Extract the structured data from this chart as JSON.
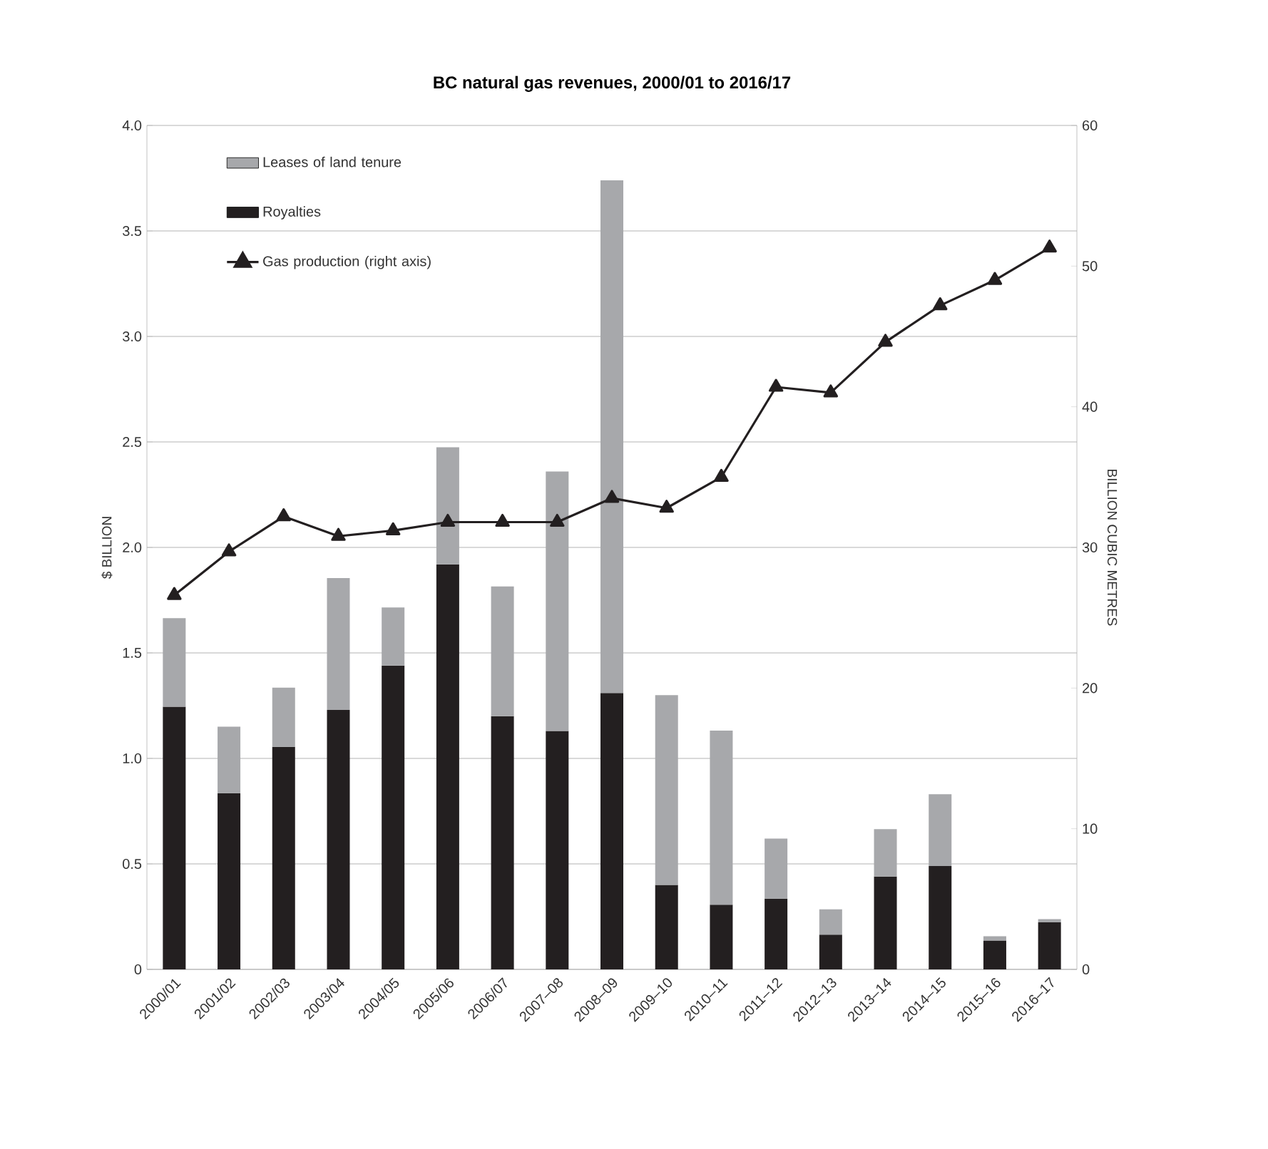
{
  "chart_data": {
    "type": "bar",
    "title": "BC natural gas revenues, 2000/01 to 2016/17",
    "ylabel": "$ BILLION",
    "y2label": "BILLION CUBIC METRES",
    "categories": [
      "2000/01",
      "2001/02",
      "2002/03",
      "2003/04",
      "2004/05",
      "2005/06",
      "2006/07",
      "2007–08",
      "2008–09",
      "2009–10",
      "2010–11",
      "2011–12",
      "2012–13",
      "2013–14",
      "2014–15",
      "2015–16",
      "2016–17"
    ],
    "series": [
      {
        "name": "Royalties",
        "color": "#231f20",
        "values": [
          1.245,
          0.835,
          1.055,
          1.23,
          1.44,
          1.92,
          1.2,
          1.13,
          1.31,
          0.4,
          0.307,
          0.335,
          0.165,
          0.44,
          0.49,
          0.137,
          0.223
        ]
      },
      {
        "name": "Leases of land tenure",
        "color": "#a7a8ab",
        "values": [
          0.42,
          0.315,
          0.28,
          0.625,
          0.275,
          0.555,
          0.615,
          1.23,
          2.43,
          0.9,
          0.825,
          0.285,
          0.12,
          0.225,
          0.34,
          0.02,
          0.015
        ]
      },
      {
        "name": "Gas production (right axis)",
        "type": "line",
        "axis": "y2",
        "color": "#231f20",
        "marker": "triangle",
        "line_style": "solid",
        "values": [
          26.6,
          29.7,
          32.2,
          30.8,
          31.2,
          31.8,
          31.8,
          31.8,
          33.5,
          32.8,
          35.0,
          41.4,
          41.0,
          44.6,
          47.2,
          49.0,
          51.3
        ]
      }
    ],
    "stacked": true,
    "ylim": [
      0,
      4
    ],
    "yticks": [
      0,
      0.5,
      {
        "value": 1,
        "label": "1.0"
      },
      1.5,
      {
        "value": 2,
        "label": "2.0"
      },
      2.5,
      {
        "value": 3,
        "label": "3.0"
      },
      3.5,
      {
        "value": 4,
        "label": "4.0"
      }
    ],
    "y2lim": [
      0,
      60
    ],
    "y2ticks": [
      0,
      10,
      20,
      30,
      40,
      50,
      60
    ],
    "grid": "y",
    "legend": "top left"
  }
}
